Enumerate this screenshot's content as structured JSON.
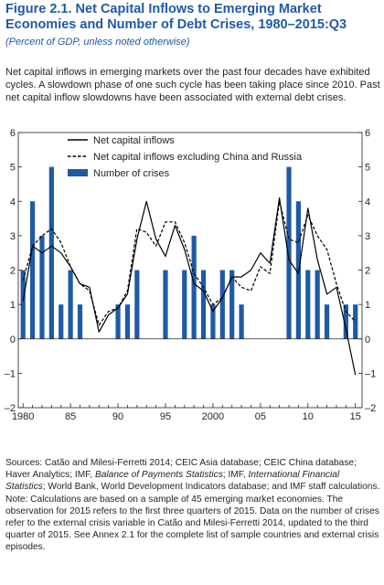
{
  "figure": {
    "title": "Figure 2.1.  Net Capital Inflows to Emerging Market Economies and Number of Debt Crises, 1980–2015:Q3",
    "subtitle": "(Percent of GDP, unless noted otherwise)",
    "intro": "Net capital inflows in emerging markets over the past four decades have exhibited cycles. A slowdown phase of one such cycle has been taking place since 2010. Past net capital inflow slowdowns have been associated with external debt crises.",
    "sources": {
      "part1": "Sources: Catão and Milesi-Ferretti 2014; CEIC Asia database; CEIC China database; Haver Analytics; IMF, ",
      "bop": "Balance of Payments Statistics",
      "part2": "; IMF, ",
      "ifs": "International Financial Statistics",
      "part3": "; World Bank, World Development Indicators database; and IMF staff calculations."
    },
    "note": "Note: Calculations are based on a sample of 45 emerging market economies. The observation for 2015 refers to the first three quarters of 2015. Data on the number of crises refer to the external crisis variable in Catão and Milesi-Ferretti 2014, updated to the third quarter of 2015. See Annex 2.1 for the complete list of sample countries and external crisis episodes."
  },
  "chart_data": {
    "type": "bar+line",
    "x": [
      1980,
      1981,
      1982,
      1983,
      1984,
      1985,
      1986,
      1987,
      1988,
      1989,
      1990,
      1991,
      1992,
      1993,
      1994,
      1995,
      1996,
      1997,
      1998,
      1999,
      2000,
      2001,
      2002,
      2003,
      2004,
      2005,
      2006,
      2007,
      2008,
      2009,
      2010,
      2011,
      2012,
      2013,
      2014,
      2015
    ],
    "xticks": [
      "1980",
      "85",
      "90",
      "95",
      "2000",
      "05",
      "10",
      "15"
    ],
    "xtick_values": [
      1980,
      1985,
      1990,
      1995,
      2000,
      2005,
      2010,
      2015
    ],
    "yticks": [
      "–2",
      "–1",
      "0",
      "1",
      "2",
      "3",
      "4",
      "5",
      "6"
    ],
    "ytick_values": [
      -2,
      -1,
      0,
      1,
      2,
      3,
      4,
      5,
      6
    ],
    "ylim": [
      -2,
      6
    ],
    "xlim": [
      1979.5,
      2015.7
    ],
    "grid": false,
    "legend_position": "top-right",
    "series": [
      {
        "name": "Net capital inflows",
        "kind": "line",
        "style": "solid",
        "color": "#000000",
        "values": [
          1.1,
          2.7,
          2.5,
          2.7,
          2.5,
          2.1,
          1.6,
          1.5,
          0.2,
          0.7,
          0.9,
          1.3,
          2.9,
          4.0,
          2.9,
          2.4,
          3.3,
          2.6,
          1.6,
          1.4,
          0.8,
          1.2,
          1.8,
          1.8,
          2.0,
          2.5,
          2.2,
          4.1,
          2.3,
          1.9,
          3.8,
          2.3,
          1.3,
          1.5,
          0.3,
          -1.05
        ]
      },
      {
        "name": "Net capital inflows excluding China and Russia",
        "kind": "line",
        "style": "dashed",
        "color": "#000000",
        "values": [
          1.7,
          2.7,
          3.0,
          3.2,
          2.8,
          2.1,
          1.6,
          1.4,
          0.4,
          0.8,
          0.9,
          1.4,
          3.2,
          3.1,
          2.7,
          3.4,
          3.4,
          2.8,
          1.9,
          1.5,
          1.0,
          1.2,
          1.8,
          1.5,
          1.4,
          2.1,
          1.9,
          4.0,
          2.9,
          2.8,
          3.6,
          3.0,
          2.6,
          1.6,
          0.8,
          0.5
        ]
      },
      {
        "name": "Number of crises",
        "kind": "bar",
        "color": "#1f5aa6",
        "values": [
          2,
          4,
          3,
          5,
          1,
          2,
          1,
          0,
          0,
          0,
          1,
          1,
          2,
          0,
          0,
          2,
          0,
          2,
          3,
          2,
          1,
          2,
          2,
          1,
          0,
          0,
          0,
          0,
          5,
          4,
          2,
          2,
          1,
          0,
          1,
          1
        ]
      }
    ]
  }
}
